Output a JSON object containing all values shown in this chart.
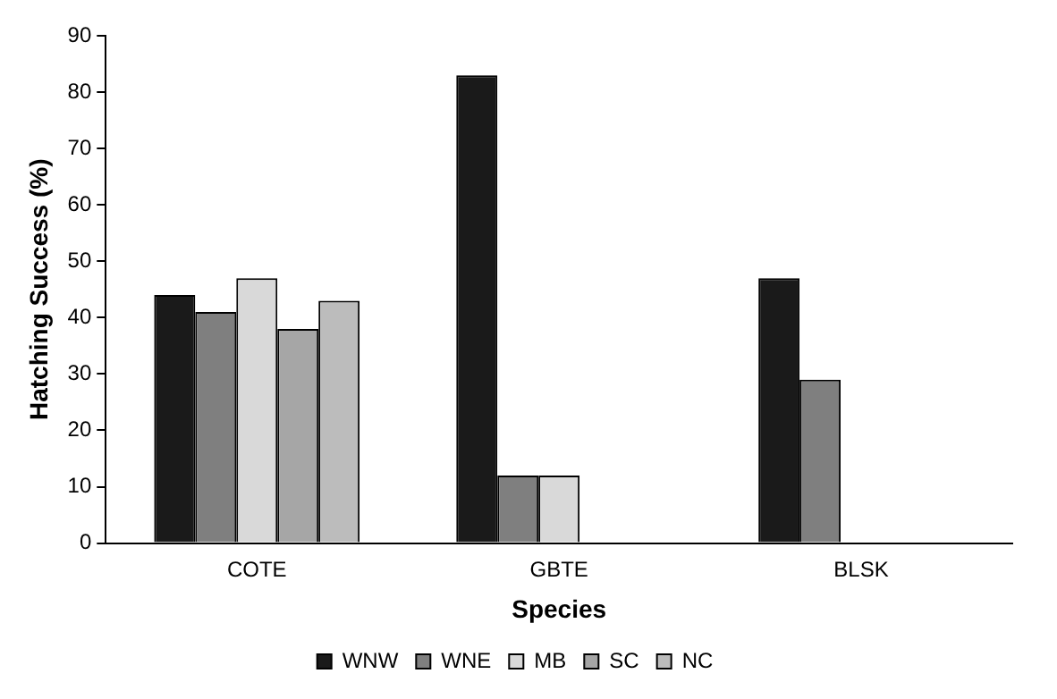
{
  "chart_data": {
    "type": "bar",
    "xlabel": "Species",
    "ylabel": "Hatching Success (%)",
    "categories": [
      "COTE",
      "GBTE",
      "BLSK"
    ],
    "series": [
      {
        "name": "WNW",
        "color": "#1a1a1a",
        "values": [
          44,
          83,
          47
        ]
      },
      {
        "name": "WNE",
        "color": "#7f7f7f",
        "values": [
          41,
          12,
          29
        ]
      },
      {
        "name": "MB",
        "color": "#d9d9d9",
        "values": [
          47,
          12,
          null
        ]
      },
      {
        "name": "SC",
        "color": "#a6a6a6",
        "values": [
          38,
          null,
          null
        ]
      },
      {
        "name": "NC",
        "color": "#bcbcbc",
        "values": [
          43,
          null,
          null
        ]
      }
    ],
    "ylim": [
      0,
      90
    ],
    "yticks": [
      0,
      10,
      20,
      30,
      40,
      50,
      60,
      70,
      80,
      90
    ],
    "grid": false,
    "legend": "bottom"
  }
}
